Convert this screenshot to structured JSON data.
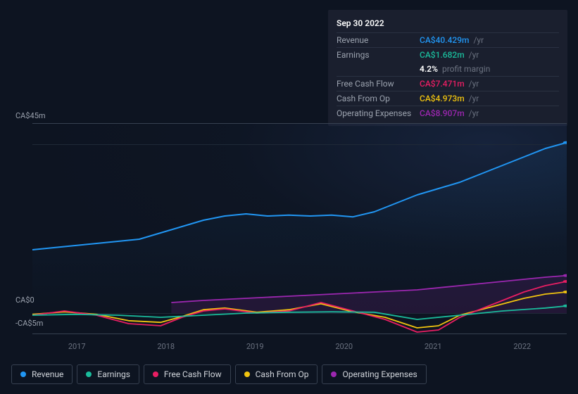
{
  "tooltip": {
    "date": "Sep 30 2022",
    "rows": [
      {
        "label": "Revenue",
        "value": "CA$40.429m",
        "color": "#2196f3",
        "suffix": "/yr"
      },
      {
        "label": "Earnings",
        "value": "CA$1.682m",
        "color": "#1abc9c",
        "suffix": "/yr"
      },
      {
        "label": "",
        "value": "4.2%",
        "color": "#ffffff",
        "suffix": "profit margin",
        "plain": true
      },
      {
        "label": "Free Cash Flow",
        "value": "CA$7.471m",
        "color": "#e91e63",
        "suffix": "/yr"
      },
      {
        "label": "Cash From Op",
        "value": "CA$4.973m",
        "color": "#f1c40f",
        "suffix": "/yr"
      },
      {
        "label": "Operating Expenses",
        "value": "CA$8.907m",
        "color": "#9c27b0",
        "suffix": "/yr"
      }
    ]
  },
  "chart": {
    "type": "line",
    "background_color": "#0d1421",
    "grid_color": "#1f2937",
    "ylabel_top": "CA$45m",
    "ylabel_zero": "CA$0",
    "ylabel_bottom": "-CA$5m",
    "xticks": [
      "2017",
      "2018",
      "2019",
      "2020",
      "2021",
      "2022"
    ],
    "ylim": [
      -5,
      45
    ],
    "zero_y": 270,
    "series": {
      "revenue": {
        "color": "#2196f3",
        "width": 2,
        "points": [
          [
            0,
            15
          ],
          [
            4,
            15.5
          ],
          [
            8,
            16
          ],
          [
            12,
            16.5
          ],
          [
            16,
            17
          ],
          [
            20,
            17.5
          ],
          [
            24,
            19
          ],
          [
            28,
            20.5
          ],
          [
            32,
            22
          ],
          [
            36,
            23
          ],
          [
            40,
            23.5
          ],
          [
            44,
            23
          ],
          [
            48,
            23.2
          ],
          [
            52,
            23
          ],
          [
            56,
            23.2
          ],
          [
            60,
            22.8
          ],
          [
            64,
            24
          ],
          [
            68,
            26
          ],
          [
            72,
            28
          ],
          [
            76,
            29.5
          ],
          [
            80,
            31
          ],
          [
            84,
            33
          ],
          [
            88,
            35
          ],
          [
            92,
            37
          ],
          [
            96,
            39
          ],
          [
            100,
            40.4
          ]
        ]
      },
      "earnings": {
        "color": "#1abc9c",
        "width": 1.8,
        "points": [
          [
            0,
            -0.5
          ],
          [
            8,
            -0.3
          ],
          [
            16,
            -0.5
          ],
          [
            24,
            -1
          ],
          [
            32,
            -0.5
          ],
          [
            40,
            0
          ],
          [
            48,
            0.2
          ],
          [
            56,
            0.3
          ],
          [
            64,
            0.2
          ],
          [
            72,
            -1.5
          ],
          [
            80,
            -0.5
          ],
          [
            88,
            0.5
          ],
          [
            96,
            1.2
          ],
          [
            100,
            1.7
          ]
        ]
      },
      "fcf": {
        "color": "#e91e63",
        "width": 1.8,
        "points": [
          [
            0,
            -0.5
          ],
          [
            6,
            0.5
          ],
          [
            12,
            -0.5
          ],
          [
            18,
            -2.5
          ],
          [
            24,
            -3
          ],
          [
            28,
            -1
          ],
          [
            32,
            0.5
          ],
          [
            36,
            1
          ],
          [
            42,
            0
          ],
          [
            48,
            0.5
          ],
          [
            54,
            2.5
          ],
          [
            60,
            0.5
          ],
          [
            66,
            -1.5
          ],
          [
            72,
            -4.5
          ],
          [
            76,
            -4
          ],
          [
            80,
            -1
          ],
          [
            86,
            2
          ],
          [
            92,
            5
          ],
          [
            96,
            6.5
          ],
          [
            100,
            7.5
          ]
        ]
      },
      "cashop": {
        "color": "#f1c40f",
        "width": 1.8,
        "points": [
          [
            0,
            -0.3
          ],
          [
            6,
            0.3
          ],
          [
            12,
            -0.3
          ],
          [
            18,
            -1.8
          ],
          [
            24,
            -2.2
          ],
          [
            28,
            -0.8
          ],
          [
            32,
            0.8
          ],
          [
            36,
            1.2
          ],
          [
            42,
            0.2
          ],
          [
            48,
            0.8
          ],
          [
            54,
            2.2
          ],
          [
            60,
            0.3
          ],
          [
            66,
            -1
          ],
          [
            72,
            -3.5
          ],
          [
            76,
            -3
          ],
          [
            80,
            -0.5
          ],
          [
            86,
            1.5
          ],
          [
            92,
            3.5
          ],
          [
            96,
            4.5
          ],
          [
            100,
            5
          ]
        ]
      },
      "opex": {
        "color": "#9c27b0",
        "width": 1.8,
        "start_x": 26,
        "points": [
          [
            26,
            2.5
          ],
          [
            32,
            3
          ],
          [
            40,
            3.5
          ],
          [
            48,
            4
          ],
          [
            56,
            4.5
          ],
          [
            64,
            5
          ],
          [
            72,
            5.5
          ],
          [
            80,
            6.5
          ],
          [
            88,
            7.5
          ],
          [
            96,
            8.5
          ],
          [
            100,
            8.9
          ]
        ]
      }
    }
  },
  "legend": [
    {
      "label": "Revenue",
      "color": "#2196f3"
    },
    {
      "label": "Earnings",
      "color": "#1abc9c"
    },
    {
      "label": "Free Cash Flow",
      "color": "#e91e63"
    },
    {
      "label": "Cash From Op",
      "color": "#f1c40f"
    },
    {
      "label": "Operating Expenses",
      "color": "#9c27b0"
    }
  ]
}
